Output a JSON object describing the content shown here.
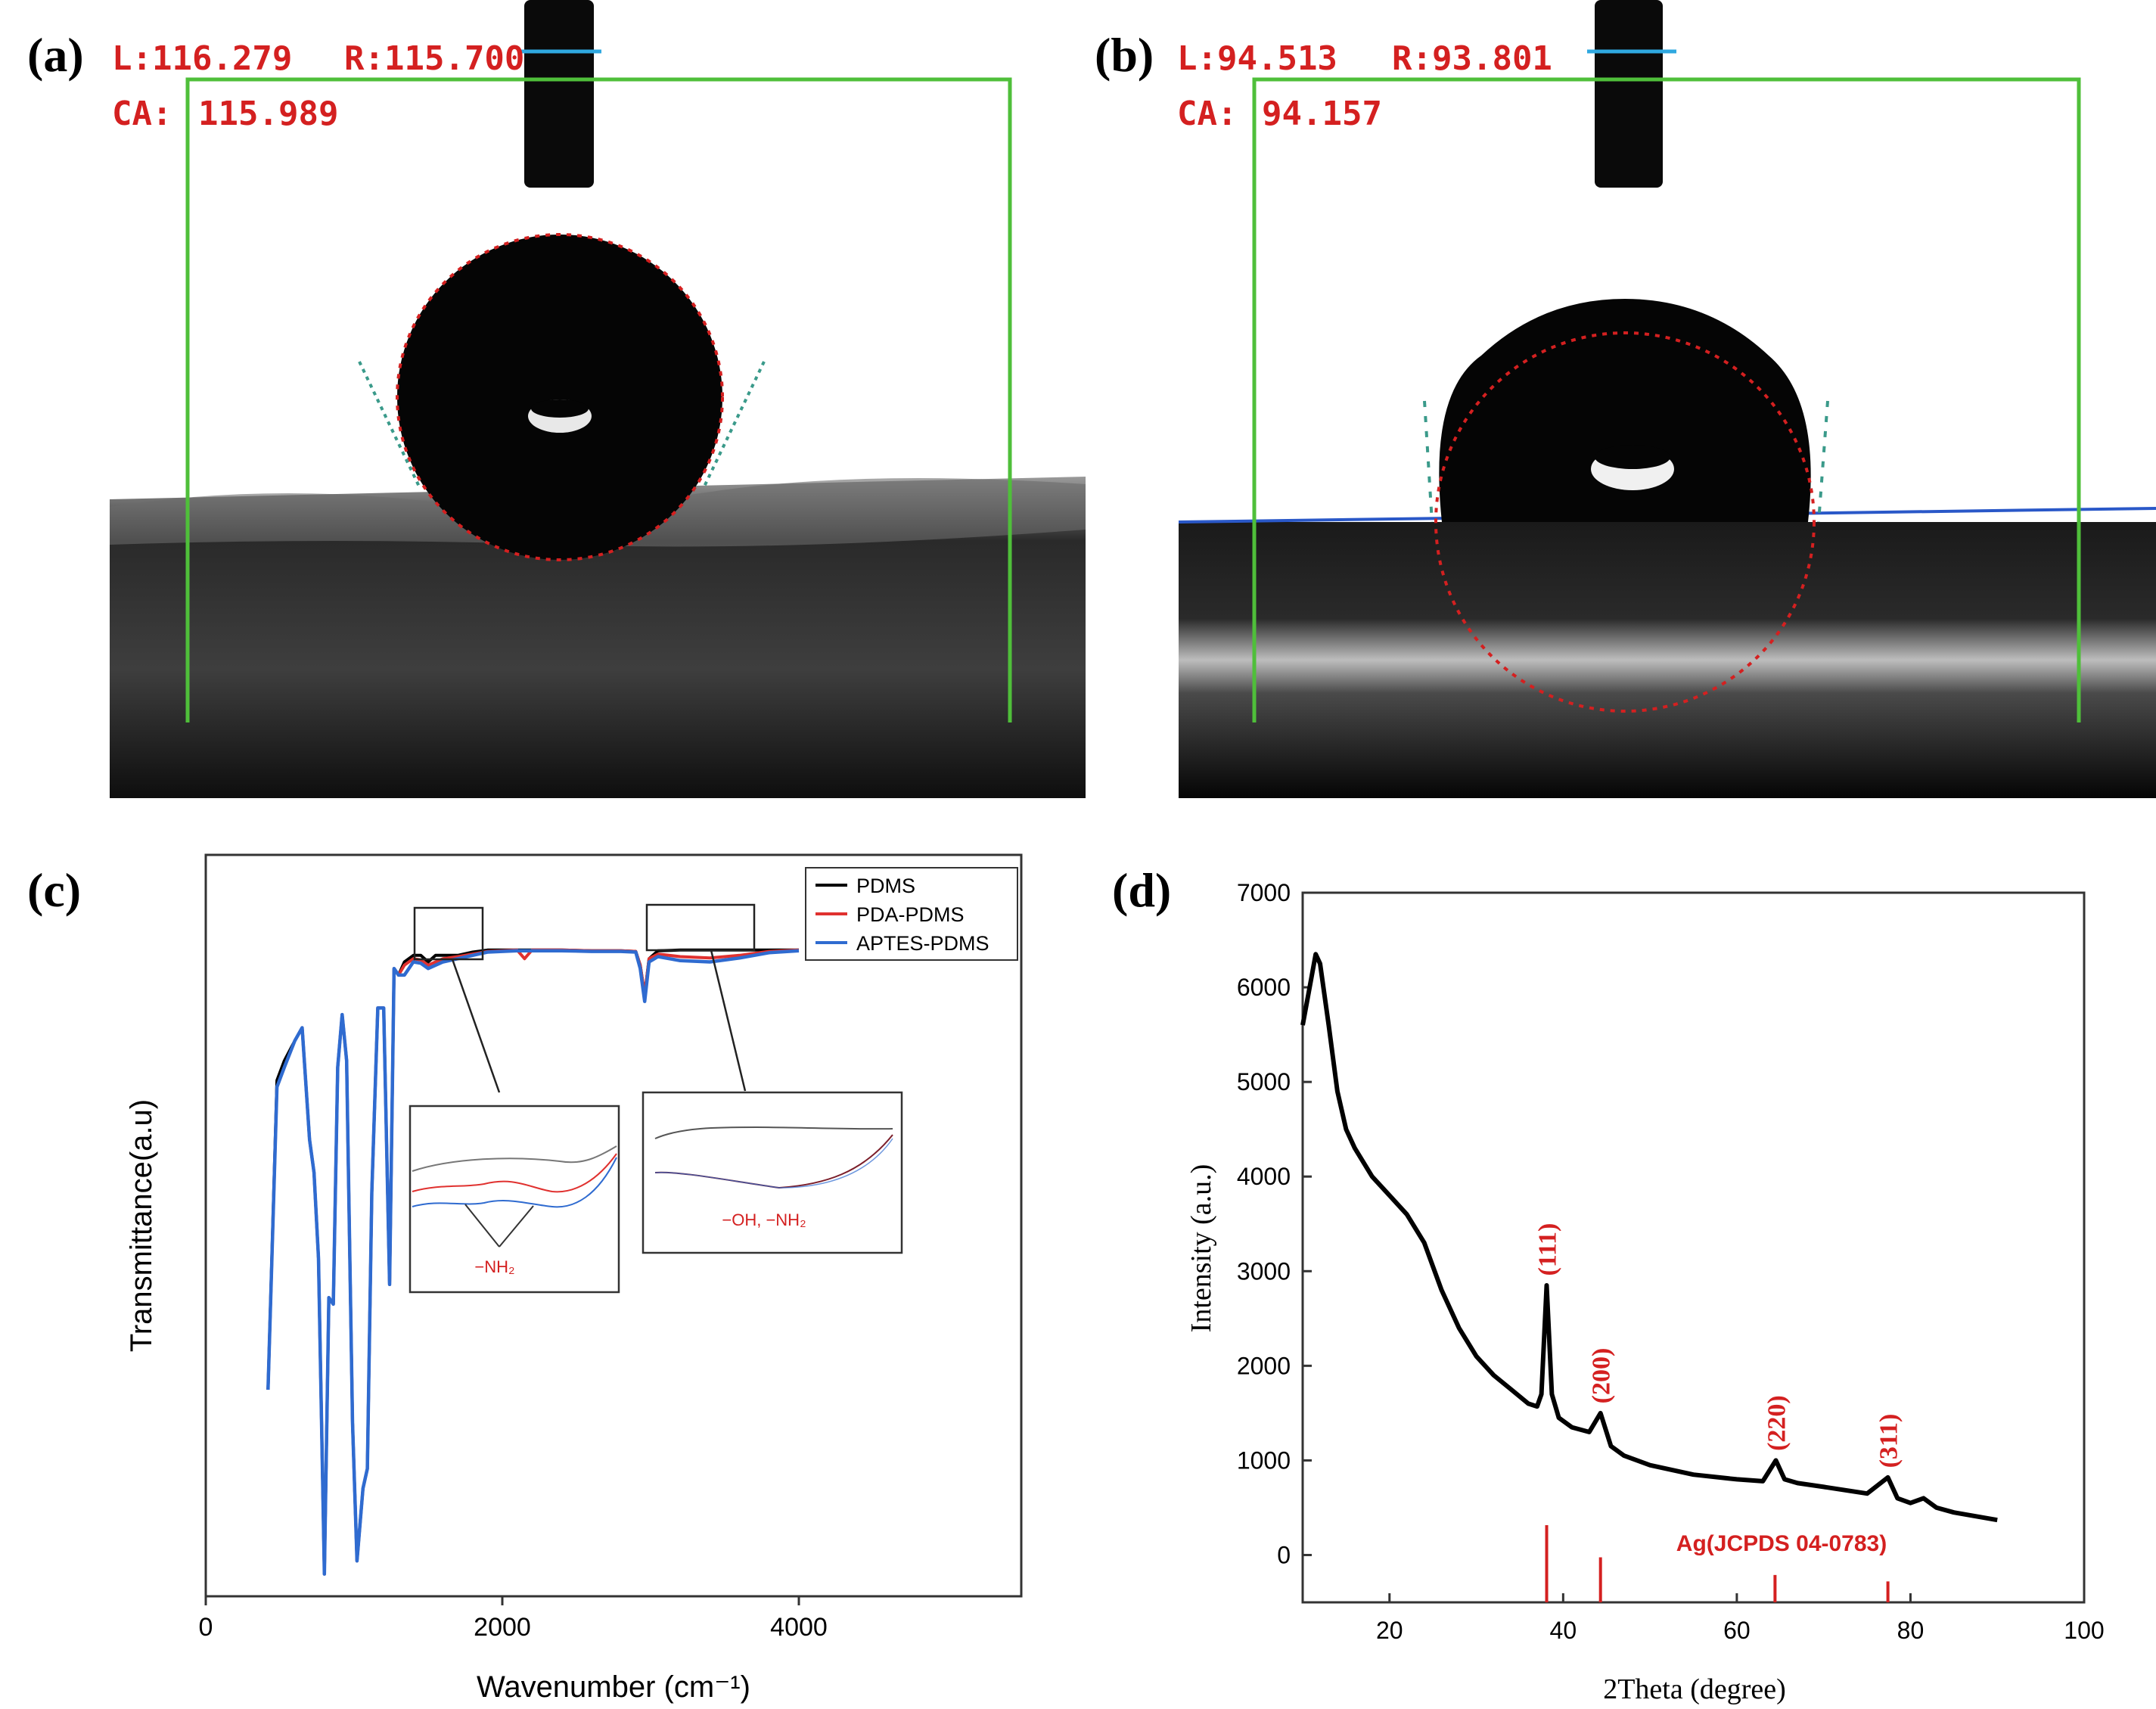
{
  "panel_labels": [
    "(a)",
    "(b)",
    "(c)",
    "(d)"
  ],
  "panel_a": {
    "left_angle_label": "L:116.279",
    "right_angle_label": "R:115.700",
    "contact_angle_label": "CA:",
    "contact_angle_value": "115.989"
  },
  "panel_b": {
    "left_angle_label": "L:94.513",
    "right_angle_label": "R:93.801",
    "contact_angle_label": "CA:",
    "contact_angle_value": "94.157"
  },
  "colors": {
    "pdms": "#000000",
    "pda_pdms": "#e0312f",
    "aptes_pdms": "#2f6bd0",
    "annotation_red": "#d42020",
    "fit_green": "#4fbf3a",
    "needle_blue": "#2fa8e0"
  },
  "chart_data": [
    {
      "id": "c",
      "type": "line",
      "xlabel": "Wavenumber (cm⁻¹)",
      "ylabel": "Transmittance(a.u)",
      "xlim": [
        0,
        5500
      ],
      "ylim": [
        0,
        1
      ],
      "xticks": [
        0,
        2000,
        4000
      ],
      "yticks_shown": false,
      "grid": false,
      "legend_position": "top-right",
      "series": [
        {
          "name": "PDMS",
          "color": "#000000",
          "x": [
            420,
            480,
            530,
            600,
            650,
            700,
            730,
            760,
            800,
            830,
            860,
            890,
            920,
            950,
            990,
            1020,
            1060,
            1090,
            1120,
            1160,
            1200,
            1240,
            1270,
            1300,
            1340,
            1400,
            1450,
            1500,
            1550,
            1600,
            1700,
            1800,
            1900,
            2000,
            2100,
            2200,
            2300,
            2400,
            2600,
            2800,
            2900,
            2930,
            2960,
            2990,
            3050,
            3200,
            3400,
            3600,
            3800,
            4000
          ],
          "values": [
            0.3,
            0.77,
            0.8,
            0.83,
            0.85,
            0.68,
            0.63,
            0.5,
            0.02,
            0.44,
            0.43,
            0.79,
            0.87,
            0.8,
            0.25,
            0.04,
            0.15,
            0.18,
            0.6,
            0.88,
            0.88,
            0.46,
            0.94,
            0.93,
            0.95,
            0.96,
            0.96,
            0.95,
            0.96,
            0.96,
            0.96,
            0.965,
            0.968,
            0.968,
            0.968,
            0.968,
            0.968,
            0.968,
            0.967,
            0.967,
            0.966,
            0.945,
            0.9,
            0.955,
            0.967,
            0.968,
            0.968,
            0.968,
            0.968,
            0.968
          ]
        },
        {
          "name": "PDA-PDMS",
          "color": "#e0312f",
          "x": [
            420,
            480,
            530,
            600,
            650,
            700,
            730,
            760,
            800,
            830,
            860,
            890,
            920,
            950,
            990,
            1020,
            1060,
            1090,
            1120,
            1160,
            1200,
            1240,
            1270,
            1300,
            1340,
            1400,
            1450,
            1500,
            1550,
            1600,
            1700,
            1800,
            1900,
            2000,
            2100,
            2150,
            2200,
            2300,
            2400,
            2600,
            2800,
            2900,
            2930,
            2960,
            2990,
            3050,
            3200,
            3400,
            3600,
            3800,
            4000
          ],
          "values": [
            0.3,
            0.76,
            0.79,
            0.83,
            0.85,
            0.68,
            0.63,
            0.5,
            0.02,
            0.44,
            0.43,
            0.79,
            0.87,
            0.8,
            0.25,
            0.04,
            0.15,
            0.18,
            0.6,
            0.88,
            0.88,
            0.46,
            0.94,
            0.93,
            0.945,
            0.955,
            0.953,
            0.945,
            0.95,
            0.955,
            0.958,
            0.962,
            0.966,
            0.967,
            0.968,
            0.955,
            0.968,
            0.968,
            0.968,
            0.967,
            0.967,
            0.966,
            0.945,
            0.9,
            0.955,
            0.962,
            0.958,
            0.956,
            0.96,
            0.966,
            0.968
          ]
        },
        {
          "name": "APTES-PDMS",
          "color": "#2f6bd0",
          "x": [
            420,
            480,
            530,
            600,
            650,
            700,
            730,
            760,
            800,
            830,
            860,
            890,
            920,
            950,
            990,
            1020,
            1060,
            1090,
            1120,
            1160,
            1200,
            1240,
            1270,
            1300,
            1340,
            1400,
            1450,
            1500,
            1550,
            1600,
            1700,
            1800,
            1900,
            2000,
            2100,
            2200,
            2300,
            2400,
            2600,
            2800,
            2900,
            2930,
            2960,
            2990,
            3050,
            3200,
            3400,
            3600,
            3800,
            4000
          ],
          "values": [
            0.3,
            0.76,
            0.79,
            0.83,
            0.85,
            0.68,
            0.63,
            0.5,
            0.02,
            0.44,
            0.43,
            0.79,
            0.87,
            0.8,
            0.25,
            0.04,
            0.15,
            0.18,
            0.6,
            0.88,
            0.88,
            0.46,
            0.94,
            0.93,
            0.93,
            0.95,
            0.948,
            0.94,
            0.945,
            0.95,
            0.955,
            0.96,
            0.965,
            0.966,
            0.967,
            0.967,
            0.967,
            0.967,
            0.966,
            0.966,
            0.965,
            0.94,
            0.89,
            0.95,
            0.958,
            0.952,
            0.95,
            0.956,
            0.964,
            0.967
          ]
        }
      ],
      "inset_annotations": [
        "−NH₂",
        "−OH, −NH₂"
      ]
    },
    {
      "id": "d",
      "type": "line",
      "xlabel": "2Theta (degree)",
      "ylabel": "Intensity (a.u.)",
      "xlim": [
        10,
        100
      ],
      "ylim": [
        -500,
        7000
      ],
      "xticks": [
        20,
        40,
        60,
        80,
        100
      ],
      "yticks": [
        0,
        1000,
        2000,
        3000,
        4000,
        5000,
        6000,
        7000
      ],
      "grid": false,
      "series": [
        {
          "name": "",
          "color": "#000000",
          "x": [
            10,
            11,
            11.5,
            12,
            13,
            14,
            15,
            16,
            18,
            20,
            22,
            24,
            26,
            28,
            30,
            32,
            34,
            36,
            37,
            37.5,
            38.1,
            38.7,
            39.5,
            41,
            43,
            44.3,
            45.5,
            47,
            50,
            55,
            60,
            63,
            64.5,
            65.5,
            67,
            70,
            75,
            77.4,
            78.5,
            80,
            81.5,
            83,
            85,
            90
          ],
          "values": [
            5600,
            6100,
            6350,
            6250,
            5600,
            4900,
            4500,
            4300,
            4000,
            3800,
            3600,
            3300,
            2800,
            2400,
            2100,
            1900,
            1750,
            1600,
            1570,
            1700,
            2850,
            1700,
            1450,
            1350,
            1300,
            1500,
            1150,
            1050,
            950,
            850,
            800,
            780,
            1000,
            800,
            760,
            720,
            650,
            820,
            600,
            550,
            600,
            500,
            450,
            370
          ]
        }
      ],
      "reference_peaks": {
        "name": "Ag(JCPDS 04-0783)",
        "x": [
          38.1,
          44.3,
          64.4,
          77.4
        ],
        "heights": [
          480,
          280,
          170,
          130
        ]
      },
      "peak_labels": [
        {
          "x": 38.1,
          "y": 2950,
          "text": "(111)"
        },
        {
          "x": 44.3,
          "y": 1600,
          "text": "(200)"
        },
        {
          "x": 64.5,
          "y": 1100,
          "text": "(220)"
        },
        {
          "x": 77.4,
          "y": 920,
          "text": "(311)"
        }
      ]
    }
  ]
}
